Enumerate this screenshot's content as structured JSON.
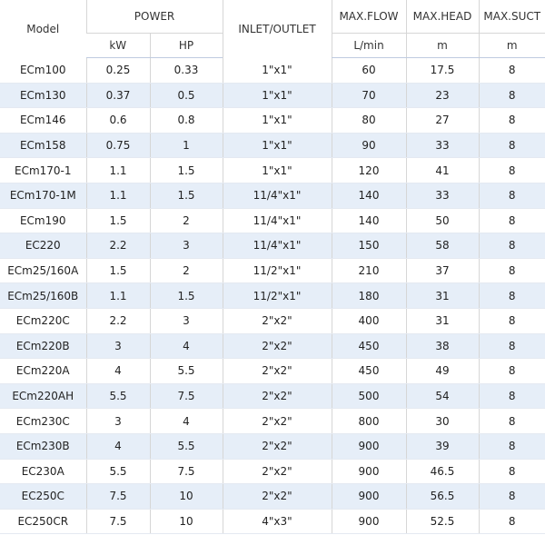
{
  "header": {
    "model": "Model",
    "power": "POWER",
    "kw": "kW",
    "hp": "HP",
    "inlet": "INLET/OUTLET",
    "flow": "MAX.FLOW",
    "flow_unit": "L/min",
    "head": "MAX.HEAD",
    "head_unit": "m",
    "suct": "MAX.SUCT",
    "suct_unit": "m"
  },
  "table": {
    "rows": [
      [
        "ECm100",
        "0.25",
        "0.33",
        "1\"x1\"",
        "60",
        "17.5",
        "8"
      ],
      [
        "ECm130",
        "0.37",
        "0.5",
        "1\"x1\"",
        "70",
        "23",
        "8"
      ],
      [
        "ECm146",
        "0.6",
        "0.8",
        "1\"x1\"",
        "80",
        "27",
        "8"
      ],
      [
        "ECm158",
        "0.75",
        "1",
        "1\"x1\"",
        "90",
        "33",
        "8"
      ],
      [
        "ECm170-1",
        "1.1",
        "1.5",
        "1\"x1\"",
        "120",
        "41",
        "8"
      ],
      [
        "ECm170-1M",
        "1.1",
        "1.5",
        "11/4\"x1\"",
        "140",
        "33",
        "8"
      ],
      [
        "ECm190",
        "1.5",
        "2",
        "11/4\"x1\"",
        "140",
        "50",
        "8"
      ],
      [
        "EC220",
        "2.2",
        "3",
        "11/4\"x1\"",
        "150",
        "58",
        "8"
      ],
      [
        "ECm25/160A",
        "1.5",
        "2",
        "11/2\"x1\"",
        "210",
        "37",
        "8"
      ],
      [
        "ECm25/160B",
        "1.1",
        "1.5",
        "11/2\"x1\"",
        "180",
        "31",
        "8"
      ],
      [
        "ECm220C",
        "2.2",
        "3",
        "2\"x2\"",
        "400",
        "31",
        "8"
      ],
      [
        "ECm220B",
        "3",
        "4",
        "2\"x2\"",
        "450",
        "38",
        "8"
      ],
      [
        "ECm220A",
        "4",
        "5.5",
        "2\"x2\"",
        "450",
        "49",
        "8"
      ],
      [
        "ECm220AH",
        "5.5",
        "7.5",
        "2\"x2\"",
        "500",
        "54",
        "8"
      ],
      [
        "ECm230C",
        "3",
        "4",
        "2\"x2\"",
        "800",
        "30",
        "8"
      ],
      [
        "ECm230B",
        "4",
        "5.5",
        "2\"x2\"",
        "900",
        "39",
        "8"
      ],
      [
        "EC230A",
        "5.5",
        "7.5",
        "2\"x2\"",
        "900",
        "46.5",
        "8"
      ],
      [
        "EC250C",
        "7.5",
        "10",
        "2\"x2\"",
        "900",
        "56.5",
        "8"
      ],
      [
        "EC250CR",
        "7.5",
        "10",
        "4\"x3\"",
        "900",
        "52.5",
        "8"
      ]
    ]
  }
}
